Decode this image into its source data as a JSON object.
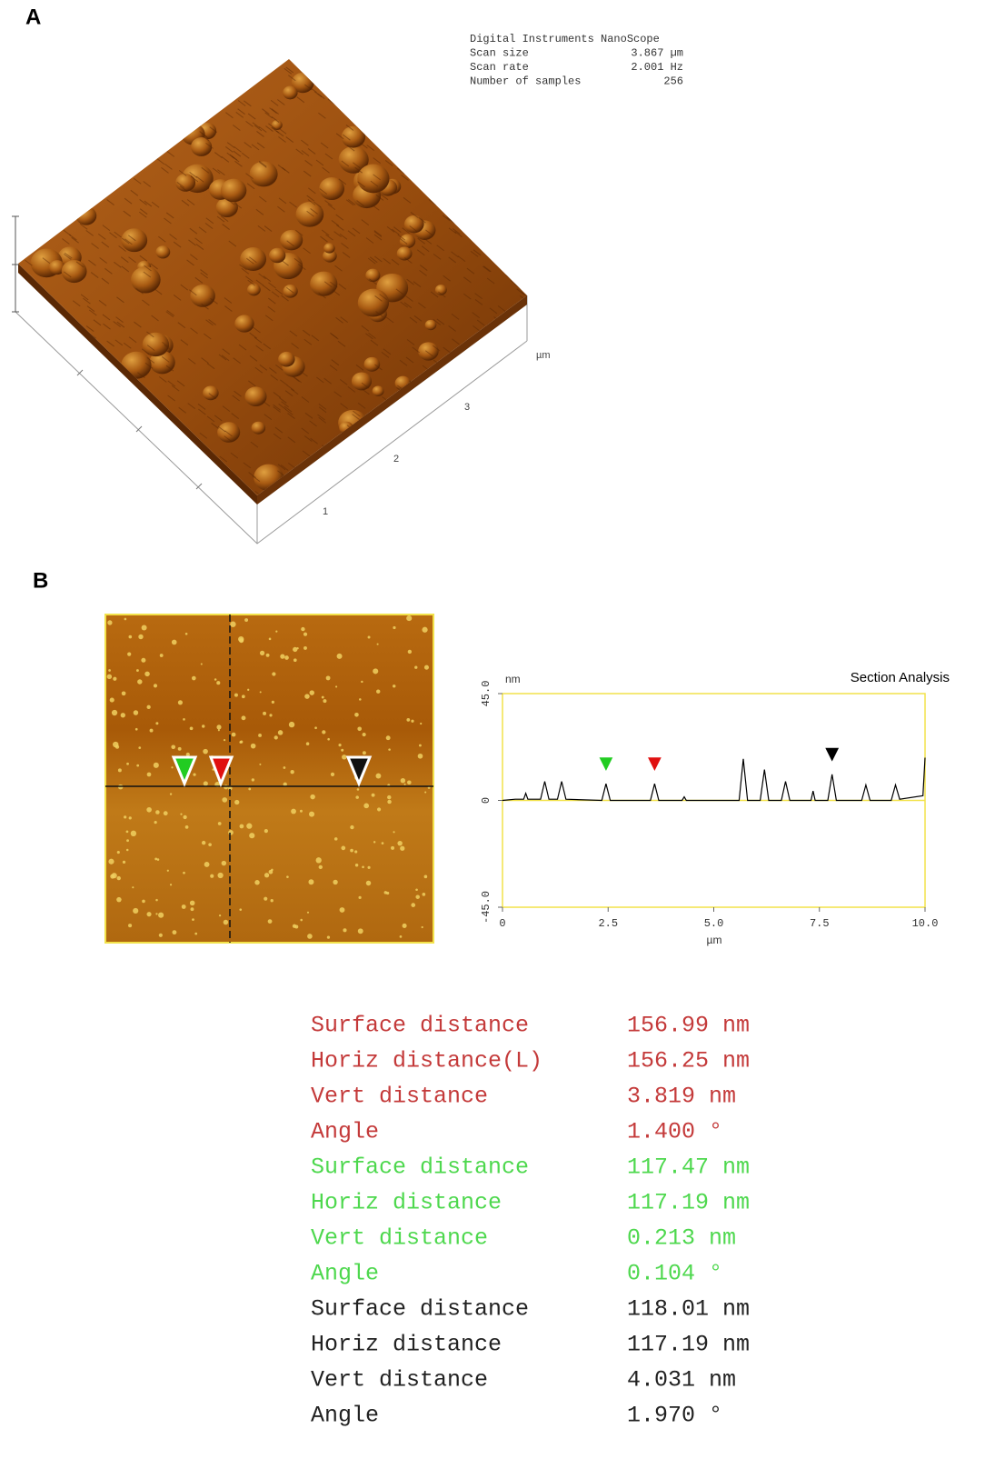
{
  "panels": {
    "a": "A",
    "b": "B"
  },
  "scan_info": [
    [
      "Digital Instruments NanoScope",
      ""
    ],
    [
      "Scan size",
      "3.867 µm"
    ],
    [
      "Scan rate",
      "2.001 Hz"
    ],
    [
      "Number of samples",
      "256"
    ]
  ],
  "surface_axis": {
    "unit": "µm",
    "ticks": [
      "1",
      "2",
      "3"
    ]
  },
  "chart_data": {
    "type": "line",
    "title": "Section Analysis",
    "y_label": "nm",
    "x_label": "µm",
    "x": [
      0,
      0.3,
      0.5,
      0.55,
      0.6,
      0.9,
      1.0,
      1.1,
      1.3,
      1.4,
      1.5,
      2.35,
      2.45,
      2.55,
      3.5,
      3.6,
      3.7,
      4.25,
      4.3,
      4.35,
      5.6,
      5.7,
      5.8,
      6.1,
      6.2,
      6.3,
      6.6,
      6.7,
      6.8,
      7.3,
      7.35,
      7.4,
      7.7,
      7.8,
      7.9,
      8.5,
      8.6,
      8.7,
      9.2,
      9.3,
      9.4,
      9.95,
      10
    ],
    "values": [
      0,
      0.5,
      0.5,
      3,
      0.5,
      0.5,
      8,
      0.5,
      0.5,
      8,
      0.5,
      0,
      7,
      0,
      0,
      7,
      0,
      0,
      1.5,
      0,
      0,
      17.5,
      0,
      0,
      13,
      0,
      0,
      8,
      0,
      0,
      4,
      0,
      0,
      11,
      0,
      0,
      6.5,
      0,
      0,
      6.5,
      0.5,
      2,
      18
    ],
    "color": "#000000",
    "frame_color": "#f2e24a",
    "xlim": [
      0,
      10
    ],
    "xticks": [
      0,
      2.5,
      {
        "value": 5,
        "label": "5.0"
      },
      7.5,
      {
        "value": 10,
        "label": "10.0"
      }
    ],
    "ylim": [
      -45,
      45
    ],
    "yticks": [
      {
        "value": -45,
        "label": "-45.0"
      },
      0,
      {
        "value": 45,
        "label": "45.0"
      }
    ],
    "markers": [
      {
        "x": 2.45,
        "color": "#22cc22"
      },
      {
        "x": 3.6,
        "color": "#e01010"
      },
      {
        "x": 7.8,
        "color": "#000000"
      }
    ]
  },
  "measurements": [
    {
      "color": "#c43a3a",
      "rows": [
        [
          "Surface distance",
          "156.99 nm"
        ],
        [
          "Horiz distance(L)",
          "156.25 nm"
        ],
        [
          "Vert distance",
          "3.819 nm"
        ],
        [
          "Angle",
          "1.400 °"
        ]
      ]
    },
    {
      "color": "#4ed84e",
      "rows": [
        [
          "Surface distance",
          "117.47 nm"
        ],
        [
          "Horiz distance",
          "117.19 nm"
        ],
        [
          "Vert distance",
          "0.213 nm"
        ],
        [
          "Angle",
          "0.104 °"
        ]
      ]
    },
    {
      "color": "#222222",
      "rows": [
        [
          "Surface distance",
          "118.01 nm"
        ],
        [
          "Horiz distance",
          "117.19 nm"
        ],
        [
          "Vert distance",
          "4.031 nm"
        ],
        [
          "Angle",
          "1.970 °"
        ]
      ]
    }
  ]
}
